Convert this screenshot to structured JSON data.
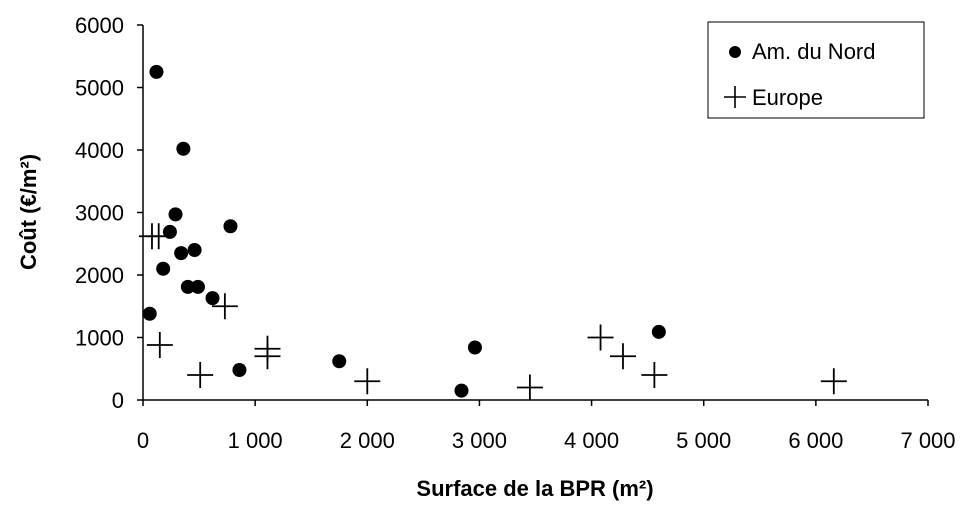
{
  "chart_data": {
    "type": "scatter",
    "xlabel": "Surface de la BPR (m²)",
    "ylabel": "Coût (€/m²)",
    "xlim": [
      0,
      7000
    ],
    "ylim": [
      0,
      6000
    ],
    "x_ticks": [
      0,
      1000,
      2000,
      3000,
      4000,
      5000,
      6000,
      7000
    ],
    "x_tick_labels": [
      "0",
      "1 000",
      "2 000",
      "3 000",
      "4 000",
      "5 000",
      "6 000",
      "7 000"
    ],
    "y_ticks": [
      0,
      1000,
      2000,
      3000,
      4000,
      5000,
      6000
    ],
    "y_tick_labels": [
      "0",
      "1000",
      "2000",
      "3000",
      "4000",
      "5000",
      "6000"
    ],
    "grid": false,
    "legend_position": "top-right",
    "series": [
      {
        "name": "Am. du Nord",
        "marker": "circle",
        "color": "#000000",
        "points": [
          {
            "x": 120,
            "y": 5250
          },
          {
            "x": 360,
            "y": 4020
          },
          {
            "x": 290,
            "y": 2970
          },
          {
            "x": 240,
            "y": 2690
          },
          {
            "x": 780,
            "y": 2780
          },
          {
            "x": 340,
            "y": 2350
          },
          {
            "x": 460,
            "y": 2400
          },
          {
            "x": 180,
            "y": 2100
          },
          {
            "x": 400,
            "y": 1810
          },
          {
            "x": 490,
            "y": 1810
          },
          {
            "x": 620,
            "y": 1630
          },
          {
            "x": 60,
            "y": 1380
          },
          {
            "x": 860,
            "y": 480
          },
          {
            "x": 1750,
            "y": 620
          },
          {
            "x": 2960,
            "y": 840
          },
          {
            "x": 2840,
            "y": 150
          },
          {
            "x": 4600,
            "y": 1090
          }
        ]
      },
      {
        "name": "Europe",
        "marker": "plus",
        "color": "#000000",
        "points": [
          {
            "x": 80,
            "y": 2620
          },
          {
            "x": 140,
            "y": 2620
          },
          {
            "x": 150,
            "y": 880
          },
          {
            "x": 510,
            "y": 400
          },
          {
            "x": 730,
            "y": 1500
          },
          {
            "x": 1110,
            "y": 700
          },
          {
            "x": 1110,
            "y": 820
          },
          {
            "x": 2000,
            "y": 300
          },
          {
            "x": 3450,
            "y": 200
          },
          {
            "x": 4080,
            "y": 1000
          },
          {
            "x": 4280,
            "y": 700
          },
          {
            "x": 4560,
            "y": 400
          },
          {
            "x": 6160,
            "y": 300
          }
        ]
      }
    ]
  }
}
